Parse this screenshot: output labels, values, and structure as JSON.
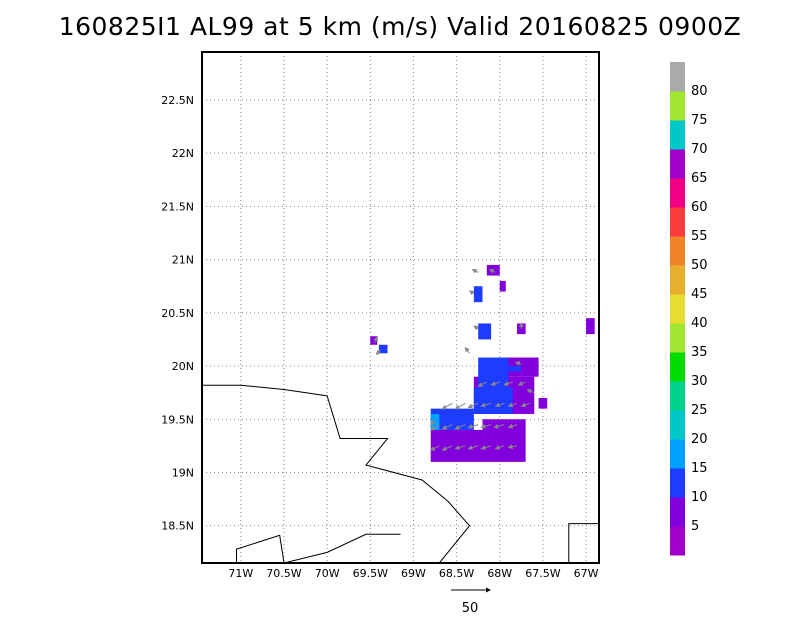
{
  "title": "160825I1 AL99 at 5 km (m/s) Valid 20160825 0900Z",
  "map": {
    "lon_range": [
      -71.45,
      -66.85
    ],
    "lat_range": [
      18.15,
      22.95
    ],
    "x_ticks": [
      {
        "lon": -71.0,
        "label": "71W"
      },
      {
        "lon": -70.5,
        "label": "70.5W"
      },
      {
        "lon": -70.0,
        "label": "70W"
      },
      {
        "lon": -69.5,
        "label": "69.5W"
      },
      {
        "lon": -69.0,
        "label": "69W"
      },
      {
        "lon": -68.5,
        "label": "68.5W"
      },
      {
        "lon": -68.0,
        "label": "68W"
      },
      {
        "lon": -67.5,
        "label": "67.5W"
      },
      {
        "lon": -67.0,
        "label": "67W"
      }
    ],
    "y_ticks": [
      {
        "lat": 18.5,
        "label": "18.5N"
      },
      {
        "lat": 19.0,
        "label": "19N"
      },
      {
        "lat": 19.5,
        "label": "19.5N"
      },
      {
        "lat": 20.0,
        "label": "20N"
      },
      {
        "lat": 20.5,
        "label": "20.5N"
      },
      {
        "lat": 21.0,
        "label": "21N"
      },
      {
        "lat": 21.5,
        "label": "21.5N"
      },
      {
        "lat": 22.0,
        "label": "22N"
      },
      {
        "lat": 22.5,
        "label": "22.5N"
      }
    ],
    "grid": "dotted",
    "vector_scale_label": "50",
    "vector_scale_value": 50,
    "coastlines": [
      [
        [
          -71.45,
          19.82
        ],
        [
          -71.0,
          19.82
        ],
        [
          -70.5,
          19.78
        ],
        [
          -70.0,
          19.72
        ],
        [
          -69.85,
          19.32
        ],
        [
          -69.3,
          19.32
        ],
        [
          -69.55,
          19.07
        ],
        [
          -68.9,
          18.93
        ],
        [
          -68.6,
          18.73
        ],
        [
          -68.35,
          18.5
        ],
        [
          -68.7,
          18.15
        ]
      ],
      [
        [
          -69.15,
          18.42
        ],
        [
          -69.55,
          18.42
        ],
        [
          -70.0,
          18.25
        ],
        [
          -70.5,
          18.15
        ],
        [
          -70.55,
          18.41
        ],
        [
          -71.05,
          18.28
        ],
        [
          -71.05,
          18.15
        ]
      ],
      [
        [
          -67.2,
          18.15
        ],
        [
          -67.2,
          18.52
        ],
        [
          -66.85,
          18.52
        ]
      ]
    ]
  },
  "colorbar": {
    "labels": [
      "5",
      "10",
      "15",
      "20",
      "25",
      "30",
      "35",
      "40",
      "45",
      "50",
      "55",
      "60",
      "65",
      "70",
      "75",
      "80"
    ],
    "colors": [
      "#a000c8",
      "#8200dc",
      "#1e3cff",
      "#00a0ff",
      "#00c8c8",
      "#00d28c",
      "#00dc00",
      "#a0e632",
      "#e6dc32",
      "#e6af2d",
      "#f08228",
      "#fa3c3c",
      "#f00082",
      "#a000c8",
      "#00c8c8",
      "#a0e632",
      "#aaaaaa"
    ]
  },
  "wind_field": {
    "units": "m/s",
    "cell_size_deg": 0.05,
    "cells": [
      {
        "lon": -68.8,
        "lat": 19.4,
        "lon2": -68.2,
        "lat2": 19.1,
        "speed": 5
      },
      {
        "lon": -68.2,
        "lat": 19.5,
        "lon2": -67.7,
        "lat2": 19.1,
        "speed": 5
      },
      {
        "lon": -68.3,
        "lat": 19.9,
        "lon2": -67.6,
        "lat2": 19.55,
        "speed": 5
      },
      {
        "lon": -68.0,
        "lat": 20.08,
        "lon2": -67.55,
        "lat2": 19.9,
        "speed": 5
      },
      {
        "lon": -67.55,
        "lat": 19.7,
        "lon2": -67.45,
        "lat2": 19.6,
        "speed": 5
      },
      {
        "lon": -68.15,
        "lat": 20.95,
        "lon2": -68.0,
        "lat2": 20.85,
        "speed": 5
      },
      {
        "lon": -68.0,
        "lat": 20.8,
        "lon2": -67.93,
        "lat2": 20.7,
        "speed": 5
      },
      {
        "lon": -67.8,
        "lat": 20.4,
        "lon2": -67.7,
        "lat2": 20.3,
        "speed": 5
      },
      {
        "lon": -67.0,
        "lat": 20.45,
        "lon2": -66.9,
        "lat2": 20.3,
        "speed": 5
      },
      {
        "lon": -69.5,
        "lat": 20.28,
        "lon2": -69.42,
        "lat2": 20.2,
        "speed": 5
      },
      {
        "lon": -68.8,
        "lat": 19.6,
        "lon2": -68.3,
        "lat2": 19.4,
        "speed": 10
      },
      {
        "lon": -68.3,
        "lat": 19.8,
        "lon2": -67.85,
        "lat2": 19.55,
        "speed": 10
      },
      {
        "lon": -68.25,
        "lat": 20.08,
        "lon2": -67.9,
        "lat2": 19.8,
        "speed": 10
      },
      {
        "lon": -68.05,
        "lat": 20.0,
        "lon2": -67.75,
        "lat2": 19.95,
        "speed": 10
      },
      {
        "lon": -68.3,
        "lat": 20.75,
        "lon2": -68.2,
        "lat2": 20.6,
        "speed": 10
      },
      {
        "lon": -68.25,
        "lat": 20.4,
        "lon2": -68.1,
        "lat2": 20.25,
        "speed": 10
      },
      {
        "lon": -69.4,
        "lat": 20.2,
        "lon2": -69.3,
        "lat2": 20.12,
        "speed": 10
      },
      {
        "lon": -68.8,
        "lat": 19.55,
        "lon2": -68.7,
        "lat2": 19.4,
        "speed": 15
      }
    ],
    "vectors": [
      {
        "lon": -68.7,
        "lat": 19.45,
        "u": -6,
        "v": -4
      },
      {
        "lon": -68.55,
        "lat": 19.45,
        "u": -7,
        "v": -3
      },
      {
        "lon": -68.4,
        "lat": 19.45,
        "u": -7,
        "v": -3
      },
      {
        "lon": -68.25,
        "lat": 19.45,
        "u": -7,
        "v": -2
      },
      {
        "lon": -68.1,
        "lat": 19.45,
        "u": -7,
        "v": -2
      },
      {
        "lon": -67.95,
        "lat": 19.45,
        "u": -7,
        "v": -2
      },
      {
        "lon": -67.8,
        "lat": 19.45,
        "u": -6,
        "v": -2
      },
      {
        "lon": -68.7,
        "lat": 19.25,
        "u": -6,
        "v": -3
      },
      {
        "lon": -68.55,
        "lat": 19.25,
        "u": -7,
        "v": -3
      },
      {
        "lon": -68.4,
        "lat": 19.25,
        "u": -7,
        "v": -2
      },
      {
        "lon": -68.25,
        "lat": 19.25,
        "u": -7,
        "v": -2
      },
      {
        "lon": -68.1,
        "lat": 19.25,
        "u": -7,
        "v": -2
      },
      {
        "lon": -67.95,
        "lat": 19.25,
        "u": -6,
        "v": -2
      },
      {
        "lon": -67.8,
        "lat": 19.25,
        "u": -6,
        "v": -1
      },
      {
        "lon": -68.55,
        "lat": 19.65,
        "u": -7,
        "v": -4
      },
      {
        "lon": -68.4,
        "lat": 19.65,
        "u": -7,
        "v": -4
      },
      {
        "lon": -68.25,
        "lat": 19.65,
        "u": -7,
        "v": -3
      },
      {
        "lon": -68.1,
        "lat": 19.65,
        "u": -7,
        "v": -2
      },
      {
        "lon": -67.95,
        "lat": 19.65,
        "u": -6,
        "v": -2
      },
      {
        "lon": -67.8,
        "lat": 19.65,
        "u": -6,
        "v": -2
      },
      {
        "lon": -67.65,
        "lat": 19.65,
        "u": -6,
        "v": -2
      },
      {
        "lon": -68.15,
        "lat": 19.85,
        "u": -6,
        "v": -3
      },
      {
        "lon": -68.0,
        "lat": 19.85,
        "u": -6,
        "v": -2
      },
      {
        "lon": -67.85,
        "lat": 19.85,
        "u": -6,
        "v": -2
      },
      {
        "lon": -67.7,
        "lat": 19.85,
        "u": -5,
        "v": -2
      },
      {
        "lon": -67.75,
        "lat": 20.02,
        "u": -4,
        "v": 1
      },
      {
        "lon": -68.35,
        "lat": 20.12,
        "u": -3,
        "v": 4
      },
      {
        "lon": -68.25,
        "lat": 20.88,
        "u": -4,
        "v": 2
      },
      {
        "lon": -68.05,
        "lat": 20.88,
        "u": -4,
        "v": 2
      },
      {
        "lon": -68.3,
        "lat": 20.68,
        "u": -3,
        "v": 2
      },
      {
        "lon": -68.25,
        "lat": 20.35,
        "u": -3,
        "v": 2
      },
      {
        "lon": -67.75,
        "lat": 20.35,
        "u": 0,
        "v": 4
      },
      {
        "lon": -69.45,
        "lat": 20.22,
        "u": 2,
        "v": 4
      },
      {
        "lon": -69.38,
        "lat": 20.15,
        "u": -3,
        "v": -3
      },
      {
        "lon": -68.75,
        "lat": 19.5,
        "u": -3,
        "v": -4
      },
      {
        "lon": -67.6,
        "lat": 19.75,
        "u": -5,
        "v": 2
      }
    ]
  }
}
